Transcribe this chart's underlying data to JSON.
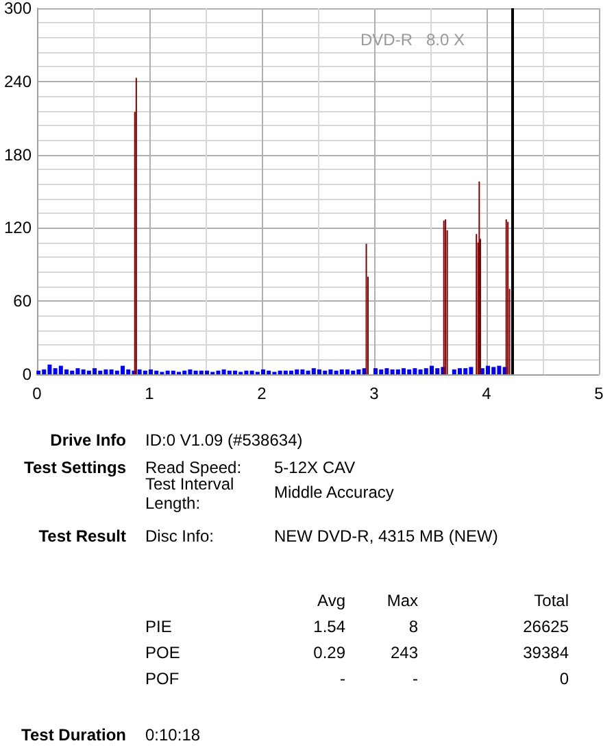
{
  "chart_data": [
    {
      "type": "bar",
      "subtitle": "DVD-R   8.0 X",
      "xlim": [
        0,
        5
      ],
      "xticks": [
        0,
        1,
        2,
        3,
        4,
        5
      ],
      "ylim": [
        0,
        300
      ],
      "yticks": [
        0,
        60,
        120,
        180,
        240,
        300
      ],
      "grid": true,
      "series": [
        {
          "color": "#0000ff",
          "x": [
            0,
            0.05,
            0.1,
            0.15,
            0.2,
            0.25,
            0.3,
            0.35,
            0.4,
            0.45,
            0.5,
            0.55,
            0.6,
            0.65,
            0.7,
            0.75,
            0.8,
            0.85,
            0.9,
            0.95,
            1,
            1.05,
            1.1,
            1.15,
            1.2,
            1.25,
            1.3,
            1.35,
            1.4,
            1.45,
            1.5,
            1.55,
            1.6,
            1.65,
            1.7,
            1.75,
            1.8,
            1.85,
            1.9,
            1.95,
            2,
            2.05,
            2.1,
            2.15,
            2.2,
            2.25,
            2.3,
            2.35,
            2.4,
            2.45,
            2.5,
            2.55,
            2.6,
            2.65,
            2.7,
            2.75,
            2.8,
            2.85,
            2.9,
            2.95,
            3,
            3.05,
            3.1,
            3.15,
            3.2,
            3.25,
            3.3,
            3.35,
            3.4,
            3.45,
            3.5,
            3.55,
            3.6,
            3.65,
            3.7,
            3.75,
            3.8,
            3.85,
            3.9,
            3.95,
            4,
            4.05,
            4.1,
            4.15
          ],
          "values": [
            3,
            4,
            8,
            5,
            7,
            4,
            3,
            5,
            4,
            3,
            5,
            3,
            4,
            4,
            3,
            7,
            4,
            3,
            4,
            3,
            4,
            3,
            2,
            3,
            3,
            2,
            3,
            4,
            3,
            3,
            3,
            2,
            3,
            4,
            3,
            3,
            2,
            3,
            3,
            2,
            4,
            3,
            2,
            3,
            3,
            3,
            4,
            4,
            3,
            5,
            4,
            3,
            4,
            3,
            4,
            4,
            3,
            4,
            5,
            null,
            5,
            4,
            5,
            4,
            4,
            5,
            4,
            5,
            4,
            5,
            7,
            5,
            6,
            null,
            4,
            5,
            5,
            6,
            null,
            5,
            7,
            6,
            7,
            6
          ]
        },
        {
          "color": "#800000",
          "x": [
            0.87,
            0.883,
            2.93,
            2.945,
            3.62,
            3.635,
            3.65,
            3.91,
            3.925,
            3.935,
            3.945,
            4.175,
            4.19,
            4.205
          ],
          "values": [
            215,
            243,
            107,
            80,
            126,
            127,
            118,
            115,
            108,
            158,
            111,
            127,
            125,
            70
          ]
        }
      ],
      "ref_lines": [
        {
          "axis": "x",
          "value": 4.22,
          "color": "#000000"
        }
      ]
    },
    {
      "type": "other",
      "annotations": [
        "Drive Info",
        "ID:0 V1.09 (#538634)",
        "Test Settings",
        "Read Speed:",
        "5-12X CAV",
        "Test Interval Length:",
        "Middle Accuracy",
        "Test Result",
        "Disc Info:",
        "NEW DVD-R, 4315 MB (NEW)",
        "Avg",
        "Max",
        "Total",
        "PIE",
        "1.54",
        "8",
        "26625",
        "POE",
        "0.29",
        "243",
        "39384",
        "POF",
        "-",
        "-",
        "0",
        "Test Duration",
        "0:10:18"
      ]
    }
  ]
}
